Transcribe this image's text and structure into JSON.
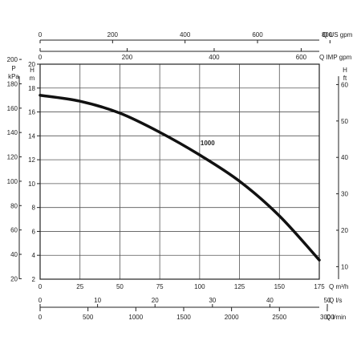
{
  "chart_data": {
    "type": "line",
    "series": [
      {
        "name": "1000",
        "x_unit": "Q m³/h",
        "y_unit": "H m",
        "points": [
          [
            0,
            17.4
          ],
          [
            25,
            16.9
          ],
          [
            50,
            15.9
          ],
          [
            75,
            14.3
          ],
          [
            100,
            12.4
          ],
          [
            125,
            10.2
          ],
          [
            150,
            7.3
          ],
          [
            175,
            3.6
          ]
        ]
      }
    ],
    "grid": true,
    "axes": {
      "q_m3h": {
        "label": "Q m³/h",
        "range": [
          0,
          175
        ],
        "ticks": [
          "0",
          "25",
          "50",
          "75",
          "100",
          "125",
          "150",
          "175"
        ]
      },
      "q_us_gpm": {
        "label": "Q US gpm",
        "range": [
          0,
          770.5
        ],
        "ticks": [
          "0",
          "200",
          "400",
          "600",
          "800"
        ]
      },
      "q_imp_gpm": {
        "label": "Q IMP gpm",
        "range": [
          0,
          641.6
        ],
        "ticks": [
          "0",
          "200",
          "400",
          "600"
        ]
      },
      "q_ls": {
        "label": "Q l/s",
        "range": [
          0,
          48.6
        ],
        "ticks": [
          "0",
          "10",
          "20",
          "30",
          "40",
          "50"
        ]
      },
      "q_lmin": {
        "label": "Q l/min",
        "range": [
          0,
          2916.7
        ],
        "ticks": [
          "0",
          "500",
          "1000",
          "1500",
          "2000",
          "2500",
          "3000"
        ]
      },
      "h_m": {
        "label_top": "H",
        "label_bottom": "m",
        "range": [
          2,
          20
        ],
        "ticks": [
          "2",
          "4",
          "6",
          "8",
          "10",
          "12",
          "14",
          "16",
          "18",
          "20"
        ]
      },
      "p_kpa": {
        "label_top": "P",
        "label_bottom": "kPa",
        "range": [
          19.6,
          196.1
        ],
        "ticks": [
          "20",
          "40",
          "60",
          "80",
          "100",
          "120",
          "140",
          "160",
          "180",
          "200"
        ]
      },
      "h_ft": {
        "label_top": "H",
        "label_bottom": "ft",
        "range": [
          6.56,
          65.6
        ],
        "ticks": [
          "10",
          "20",
          "30",
          "40",
          "50",
          "60"
        ]
      }
    }
  }
}
